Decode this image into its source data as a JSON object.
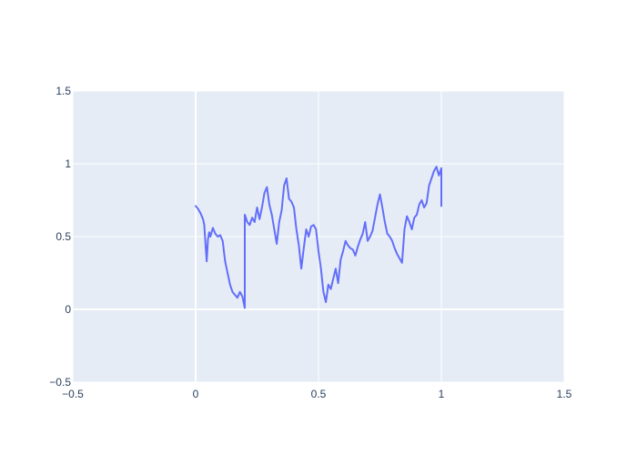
{
  "chart_data": {
    "type": "line",
    "title": "",
    "xlabel": "",
    "ylabel": "",
    "xlim": [
      -0.5,
      1.5
    ],
    "ylim": [
      -0.5,
      1.5
    ],
    "xticks": [
      -0.5,
      0,
      0.5,
      1,
      1.5
    ],
    "xtick_labels": [
      "−0.5",
      "0",
      "0.5",
      "1",
      "1.5"
    ],
    "yticks": [
      -0.5,
      0,
      0.5,
      1,
      1.5
    ],
    "ytick_labels": [
      "−0.5",
      "0",
      "0.5",
      "1",
      "1.5"
    ],
    "grid": true,
    "legend": "none",
    "colors": {
      "plot_bg": "#e5ecf6",
      "grid": "#ffffff",
      "line": "#636efa",
      "text": "#2a3f5f"
    },
    "series": [
      {
        "color": "#636efa",
        "x": [
          0,
          0.01,
          0.02,
          0.03,
          0.035,
          0.04,
          0.045,
          0.05,
          0.055,
          0.06,
          0.07,
          0.08,
          0.09,
          0.1,
          0.11,
          0.12,
          0.13,
          0.14,
          0.15,
          0.16,
          0.17,
          0.18,
          0.19,
          0.2,
          0.2,
          0.21,
          0.22,
          0.23,
          0.24,
          0.25,
          0.26,
          0.27,
          0.28,
          0.29,
          0.3,
          0.31,
          0.32,
          0.33,
          0.34,
          0.35,
          0.36,
          0.37,
          0.38,
          0.39,
          0.4,
          0.41,
          0.42,
          0.43,
          0.44,
          0.45,
          0.46,
          0.47,
          0.48,
          0.49,
          0.5,
          0.51,
          0.52,
          0.53,
          0.54,
          0.55,
          0.56,
          0.57,
          0.58,
          0.59,
          0.6,
          0.61,
          0.62,
          0.63,
          0.64,
          0.65,
          0.66,
          0.67,
          0.68,
          0.69,
          0.7,
          0.71,
          0.72,
          0.73,
          0.74,
          0.75,
          0.76,
          0.77,
          0.78,
          0.79,
          0.8,
          0.81,
          0.82,
          0.83,
          0.84,
          0.85,
          0.86,
          0.87,
          0.88,
          0.89,
          0.9,
          0.91,
          0.92,
          0.93,
          0.94,
          0.95,
          0.96,
          0.97,
          0.98,
          0.99,
          1.0,
          1.0
        ],
        "y": [
          0.71,
          0.69,
          0.66,
          0.62,
          0.58,
          0.45,
          0.33,
          0.48,
          0.53,
          0.5,
          0.56,
          0.52,
          0.5,
          0.51,
          0.47,
          0.33,
          0.25,
          0.17,
          0.12,
          0.1,
          0.08,
          0.12,
          0.09,
          0.01,
          0.65,
          0.6,
          0.58,
          0.63,
          0.6,
          0.7,
          0.62,
          0.7,
          0.8,
          0.84,
          0.72,
          0.65,
          0.55,
          0.45,
          0.6,
          0.68,
          0.85,
          0.9,
          0.76,
          0.74,
          0.7,
          0.55,
          0.44,
          0.28,
          0.42,
          0.55,
          0.5,
          0.57,
          0.58,
          0.55,
          0.4,
          0.28,
          0.12,
          0.05,
          0.17,
          0.14,
          0.21,
          0.28,
          0.18,
          0.34,
          0.4,
          0.47,
          0.44,
          0.42,
          0.41,
          0.37,
          0.43,
          0.48,
          0.52,
          0.6,
          0.47,
          0.5,
          0.54,
          0.63,
          0.72,
          0.79,
          0.7,
          0.6,
          0.52,
          0.5,
          0.47,
          0.42,
          0.38,
          0.35,
          0.32,
          0.55,
          0.64,
          0.6,
          0.55,
          0.63,
          0.65,
          0.72,
          0.75,
          0.7,
          0.73,
          0.85,
          0.9,
          0.95,
          0.98,
          0.92,
          0.97,
          0.71
        ]
      }
    ]
  }
}
